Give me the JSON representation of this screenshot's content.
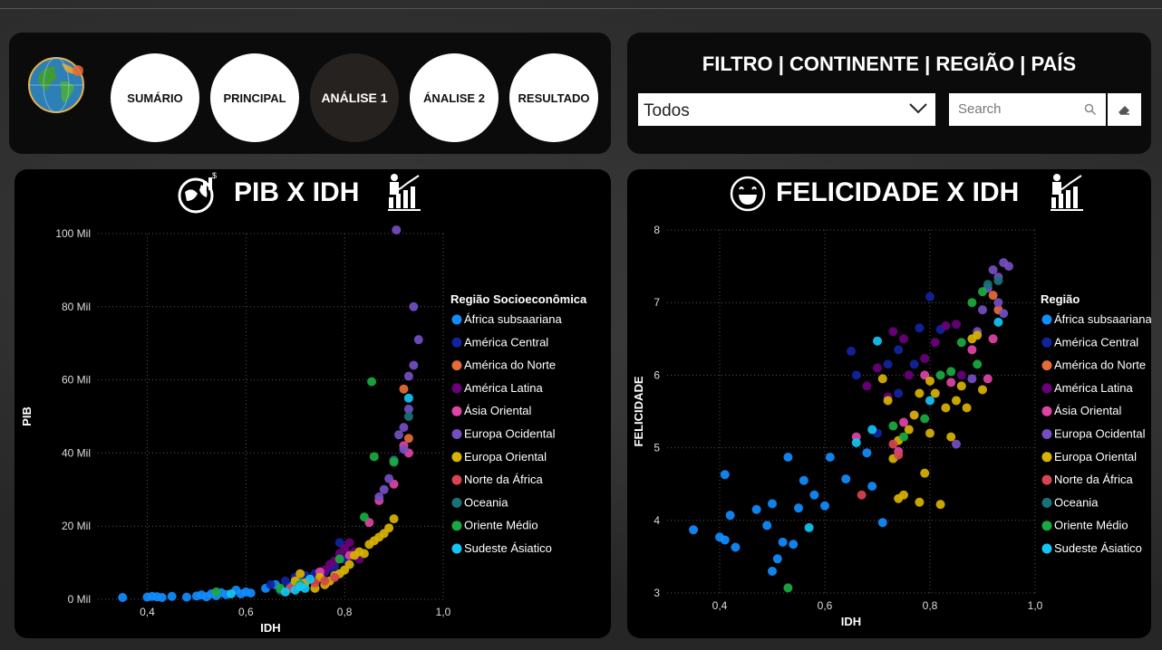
{
  "nav": {
    "buttons": [
      {
        "label": "SUMÁRIO"
      },
      {
        "label": "PRINCIPAL"
      },
      {
        "label": "ANÁLISE 1"
      },
      {
        "label": "ÁNALISE 2"
      },
      {
        "label": "RESULTADO"
      }
    ],
    "active_index": 2
  },
  "filter": {
    "title": "FILTRO | CONTINENTE | REGIÃO | PAÍS",
    "dropdown_value": "Todos",
    "search_placeholder": "Search"
  },
  "colors": {
    "África subsaariana": "#118dff",
    "América Central": "#12239e",
    "América do Norte": "#e66c37",
    "América Latina": "#6b007b",
    "Ásia Oriental": "#e044a7",
    "Europa Ocidental": "#744ec2",
    "Europa Oriental": "#d9b300",
    "Norte da África": "#d64550",
    "Oceania": "#197278",
    "Oriente Médio": "#1aab40",
    "Sudeste Ásiatico": "#15c6f4"
  },
  "chart_data": [
    {
      "type": "scatter",
      "title": "PIB X IDH",
      "xlabel": "IDH",
      "ylabel": "PIB",
      "xlim": [
        0.3,
        1.0
      ],
      "ylim": [
        0,
        100000
      ],
      "xticks": [
        "0,4",
        "0,6",
        "0,8",
        "1,0"
      ],
      "xtick_values": [
        0.4,
        0.6,
        0.8,
        1.0
      ],
      "yticks": [
        "0 Mil",
        "20 Mil",
        "40 Mil",
        "60 Mil",
        "80 Mil",
        "100 Mil"
      ],
      "ytick_values": [
        0,
        20000,
        40000,
        60000,
        80000,
        100000
      ],
      "legend_title": "Região Socioeconômica",
      "legend_placement": "right",
      "series": [
        {
          "name": "África subsaariana",
          "points": [
            [
              0.35,
              500
            ],
            [
              0.4,
              600
            ],
            [
              0.41,
              800
            ],
            [
              0.42,
              700
            ],
            [
              0.43,
              500
            ],
            [
              0.45,
              800
            ],
            [
              0.48,
              600
            ],
            [
              0.5,
              900
            ],
            [
              0.51,
              1200
            ],
            [
              0.52,
              700
            ],
            [
              0.53,
              1500
            ],
            [
              0.54,
              1000
            ],
            [
              0.55,
              1800
            ],
            [
              0.56,
              1300
            ],
            [
              0.58,
              2500
            ],
            [
              0.59,
              1500
            ],
            [
              0.6,
              2000
            ],
            [
              0.61,
              1700
            ],
            [
              0.64,
              3000
            ],
            [
              0.66,
              4000
            ],
            [
              0.69,
              3500
            ],
            [
              0.71,
              4500
            ]
          ]
        },
        {
          "name": "América Central",
          "points": [
            [
              0.65,
              4000
            ],
            [
              0.68,
              5000
            ],
            [
              0.7,
              6000
            ],
            [
              0.72,
              6500
            ],
            [
              0.74,
              7000
            ],
            [
              0.76,
              7500
            ],
            [
              0.77,
              8500
            ],
            [
              0.78,
              9000
            ],
            [
              0.79,
              15500
            ],
            [
              0.8,
              11000
            ]
          ]
        },
        {
          "name": "América do Norte",
          "points": [
            [
              0.92,
              57500
            ],
            [
              0.93,
              44000
            ]
          ]
        },
        {
          "name": "América Latina",
          "points": [
            [
              0.75,
              7000
            ],
            [
              0.76,
              8000
            ],
            [
              0.77,
              9500
            ],
            [
              0.78,
              10500
            ],
            [
              0.79,
              12500
            ],
            [
              0.8,
              14000
            ],
            [
              0.81,
              15500
            ],
            [
              0.82,
              13000
            ],
            [
              0.83,
              11000
            ]
          ]
        },
        {
          "name": "Ásia Oriental",
          "points": [
            [
              0.75,
              7500
            ],
            [
              0.81,
              12000
            ],
            [
              0.85,
              21000
            ],
            [
              0.87,
              27000
            ],
            [
              0.9,
              31500
            ],
            [
              0.92,
              42000
            ],
            [
              0.93,
              40000
            ]
          ]
        },
        {
          "name": "Europa Ocidental",
          "points": [
            [
              0.87,
              28000
            ],
            [
              0.88,
              30000
            ],
            [
              0.89,
              33000
            ],
            [
              0.9,
              38000
            ],
            [
              0.91,
              45000
            ],
            [
              0.92,
              41000
            ],
            [
              0.92,
              47000
            ],
            [
              0.93,
              52000
            ],
            [
              0.93,
              61000
            ],
            [
              0.94,
              64000
            ],
            [
              0.95,
              71000
            ],
            [
              0.94,
              80000
            ],
            [
              0.905,
              101000
            ]
          ]
        },
        {
          "name": "Europa Oriental",
          "points": [
            [
              0.7,
              5000
            ],
            [
              0.71,
              7000
            ],
            [
              0.72,
              4500
            ],
            [
              0.74,
              3000
            ],
            [
              0.75,
              6000
            ],
            [
              0.76,
              4000
            ],
            [
              0.77,
              5000
            ],
            [
              0.78,
              6500
            ],
            [
              0.79,
              7000
            ],
            [
              0.8,
              8000
            ],
            [
              0.81,
              9500
            ],
            [
              0.82,
              12000
            ],
            [
              0.83,
              13000
            ],
            [
              0.84,
              12500
            ],
            [
              0.85,
              15000
            ],
            [
              0.86,
              16000
            ],
            [
              0.87,
              17000
            ],
            [
              0.88,
              18000
            ],
            [
              0.89,
              19500
            ],
            [
              0.9,
              22000
            ]
          ]
        },
        {
          "name": "Norte da África",
          "points": [
            [
              0.69,
              3000
            ],
            [
              0.71,
              4000
            ],
            [
              0.74,
              4500
            ],
            [
              0.76,
              5000
            ],
            [
              0.78,
              6000
            ]
          ]
        },
        {
          "name": "Oceania",
          "points": [
            [
              0.67,
              2500
            ],
            [
              0.9,
              38000
            ],
            [
              0.93,
              50000
            ]
          ]
        },
        {
          "name": "Oriente Médio",
          "points": [
            [
              0.54,
              2000
            ],
            [
              0.67,
              3000
            ],
            [
              0.71,
              4000
            ],
            [
              0.79,
              11000
            ],
            [
              0.84,
              22500
            ],
            [
              0.86,
              39000
            ],
            [
              0.855,
              59500
            ],
            [
              0.9,
              37500
            ]
          ]
        },
        {
          "name": "Sudeste Ásiatico",
          "points": [
            [
              0.57,
              1500
            ],
            [
              0.68,
              2000
            ],
            [
              0.7,
              2500
            ],
            [
              0.71,
              3500
            ],
            [
              0.72,
              3000
            ],
            [
              0.73,
              5500
            ],
            [
              0.93,
              55000
            ]
          ]
        }
      ]
    },
    {
      "type": "scatter",
      "title": "FELICIDADE X  IDH",
      "xlabel": "IDH",
      "ylabel": "FELICIDADE",
      "xlim": [
        0.3,
        1.0
      ],
      "ylim": [
        3,
        8
      ],
      "xticks": [
        "0,4",
        "0,6",
        "0,8",
        "1,0"
      ],
      "xtick_values": [
        0.4,
        0.6,
        0.8,
        1.0
      ],
      "yticks": [
        "3",
        "4",
        "5",
        "6",
        "7",
        "8"
      ],
      "ytick_values": [
        3,
        4,
        5,
        6,
        7,
        8
      ],
      "legend_title": "Região",
      "legend_placement": "right",
      "series": [
        {
          "name": "África subsaariana",
          "points": [
            [
              0.35,
              3.87
            ],
            [
              0.4,
              3.77
            ],
            [
              0.41,
              4.63
            ],
            [
              0.41,
              3.73
            ],
            [
              0.42,
              4.07
            ],
            [
              0.43,
              3.63
            ],
            [
              0.47,
              4.15
            ],
            [
              0.49,
              3.93
            ],
            [
              0.5,
              4.23
            ],
            [
              0.5,
              3.3
            ],
            [
              0.51,
              3.47
            ],
            [
              0.52,
              3.7
            ],
            [
              0.53,
              4.87
            ],
            [
              0.54,
              3.67
            ],
            [
              0.55,
              4.17
            ],
            [
              0.56,
              4.55
            ],
            [
              0.58,
              4.35
            ],
            [
              0.6,
              4.2
            ],
            [
              0.61,
              4.87
            ],
            [
              0.64,
              4.57
            ],
            [
              0.68,
              4.93
            ],
            [
              0.69,
              4.47
            ],
            [
              0.71,
              3.97
            ]
          ]
        },
        {
          "name": "América Central",
          "points": [
            [
              0.65,
              6.33
            ],
            [
              0.66,
              6.0
            ],
            [
              0.72,
              6.15
            ],
            [
              0.74,
              6.35
            ],
            [
              0.77,
              6.15
            ],
            [
              0.78,
              6.65
            ],
            [
              0.8,
              7.08
            ],
            [
              0.82,
              6.63
            ],
            [
              0.74,
              5.75
            ],
            [
              0.7,
              5.2
            ]
          ]
        },
        {
          "name": "América do Norte",
          "points": [
            [
              0.92,
              7.1
            ],
            [
              0.93,
              6.9
            ]
          ]
        },
        {
          "name": "América Latina",
          "points": [
            [
              0.68,
              5.85
            ],
            [
              0.7,
              6.1
            ],
            [
              0.72,
              5.7
            ],
            [
              0.73,
              6.6
            ],
            [
              0.75,
              6.5
            ],
            [
              0.76,
              6.0
            ],
            [
              0.77,
              5.45
            ],
            [
              0.79,
              6.23
            ],
            [
              0.81,
              6.45
            ],
            [
              0.83,
              6.68
            ],
            [
              0.85,
              6.7
            ],
            [
              0.86,
              6.0
            ]
          ]
        },
        {
          "name": "Ásia Oriental",
          "points": [
            [
              0.66,
              5.15
            ],
            [
              0.74,
              4.95
            ],
            [
              0.75,
              5.35
            ],
            [
              0.79,
              6.0
            ],
            [
              0.84,
              5.9
            ],
            [
              0.88,
              6.35
            ],
            [
              0.91,
              5.95
            ],
            [
              0.92,
              6.5
            ]
          ]
        },
        {
          "name": "Europa Ocidental",
          "points": [
            [
              0.85,
              5.05
            ],
            [
              0.88,
              5.95
            ],
            [
              0.89,
              6.6
            ],
            [
              0.9,
              6.9
            ],
            [
              0.91,
              7.2
            ],
            [
              0.92,
              7.45
            ],
            [
              0.93,
              7.35
            ],
            [
              0.93,
              7.0
            ],
            [
              0.94,
              7.55
            ],
            [
              0.95,
              7.5
            ],
            [
              0.94,
              6.85
            ]
          ]
        },
        {
          "name": "Europa Oriental",
          "points": [
            [
              0.71,
              5.95
            ],
            [
              0.72,
              5.65
            ],
            [
              0.73,
              4.85
            ],
            [
              0.74,
              5.1
            ],
            [
              0.75,
              4.35
            ],
            [
              0.76,
              5.25
            ],
            [
              0.77,
              5.45
            ],
            [
              0.78,
              5.75
            ],
            [
              0.79,
              4.65
            ],
            [
              0.8,
              5.2
            ],
            [
              0.8,
              5.92
            ],
            [
              0.81,
              5.75
            ],
            [
              0.82,
              4.22
            ],
            [
              0.83,
              5.55
            ],
            [
              0.84,
              5.15
            ],
            [
              0.85,
              5.65
            ],
            [
              0.86,
              5.85
            ],
            [
              0.87,
              5.55
            ],
            [
              0.88,
              6.5
            ],
            [
              0.89,
              6.55
            ],
            [
              0.9,
              5.8
            ],
            [
              0.74,
              4.3
            ],
            [
              0.78,
              4.25
            ]
          ]
        },
        {
          "name": "Norte da África",
          "points": [
            [
              0.67,
              4.35
            ],
            [
              0.73,
              5.05
            ],
            [
              0.74,
              4.9
            ]
          ]
        },
        {
          "name": "Oceania",
          "points": [
            [
              0.93,
              7.3
            ],
            [
              0.91,
              7.25
            ]
          ]
        },
        {
          "name": "Oriente Médio",
          "points": [
            [
              0.53,
              3.07
            ],
            [
              0.73,
              5.3
            ],
            [
              0.75,
              5.15
            ],
            [
              0.79,
              5.4
            ],
            [
              0.82,
              6.0
            ],
            [
              0.84,
              6.05
            ],
            [
              0.86,
              6.45
            ],
            [
              0.88,
              7.0
            ],
            [
              0.9,
              7.15
            ],
            [
              0.89,
              6.15
            ]
          ]
        },
        {
          "name": "Sudeste Ásiatico",
          "points": [
            [
              0.57,
              3.9
            ],
            [
              0.66,
              5.07
            ],
            [
              0.69,
              5.25
            ],
            [
              0.7,
              6.47
            ],
            [
              0.8,
              5.65
            ],
            [
              0.93,
              6.73
            ]
          ]
        }
      ]
    }
  ]
}
